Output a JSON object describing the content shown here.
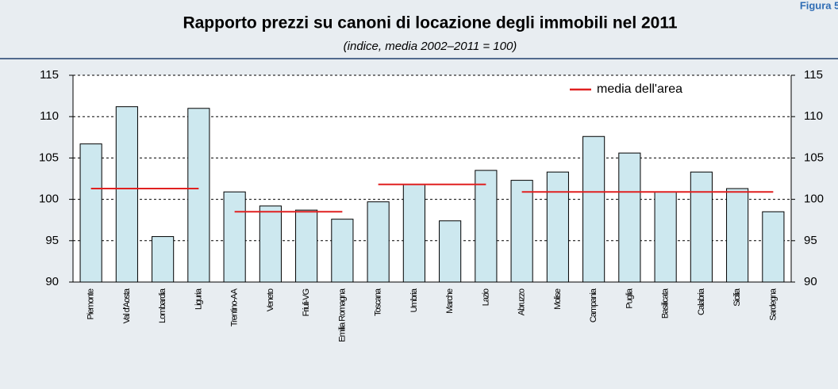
{
  "figure_label": "Figura 5.",
  "chart_data": {
    "type": "bar",
    "title": "Rapporto prezzi su canoni di locazione degli immobili nel 2011",
    "subtitle": "(indice, media 2002–2011 = 100)",
    "categories": [
      "Piemonte",
      "Val d'Aosta",
      "Lombardia",
      "Liguria",
      "Trentino-AA",
      "Veneto",
      "Friuli-VG",
      "Emilia Romagna",
      "Toscana",
      "Umbria",
      "Marche",
      "Lazio",
      "Abruzzo",
      "Molise",
      "Campania",
      "Puglia",
      "Basilicata",
      "Calabria",
      "Sicilia",
      "Sardegna"
    ],
    "values": [
      106.7,
      111.2,
      95.5,
      111.0,
      100.9,
      99.2,
      98.7,
      97.6,
      99.7,
      101.8,
      97.4,
      103.5,
      102.3,
      103.3,
      107.6,
      105.6,
      100.9,
      103.3,
      101.3,
      98.5
    ],
    "color": "#cde8ef",
    "area_means": {
      "name": "media dell'area",
      "color": "#e02020",
      "groups": [
        {
          "start": "Piemonte",
          "end": "Liguria",
          "value": 101.3
        },
        {
          "start": "Trentino-AA",
          "end": "Emilia Romagna",
          "value": 98.5
        },
        {
          "start": "Toscana",
          "end": "Lazio",
          "value": 101.8
        },
        {
          "start": "Abruzzo",
          "end": "Sardegna",
          "value": 100.9
        }
      ]
    },
    "ylim": [
      90,
      115
    ],
    "yticks": [
      90,
      95,
      100,
      105,
      110,
      115
    ],
    "y2lim": [
      90,
      115
    ],
    "y2ticks": [
      90,
      95,
      100,
      105,
      110,
      115
    ],
    "grid": true,
    "legend": "top-right"
  }
}
